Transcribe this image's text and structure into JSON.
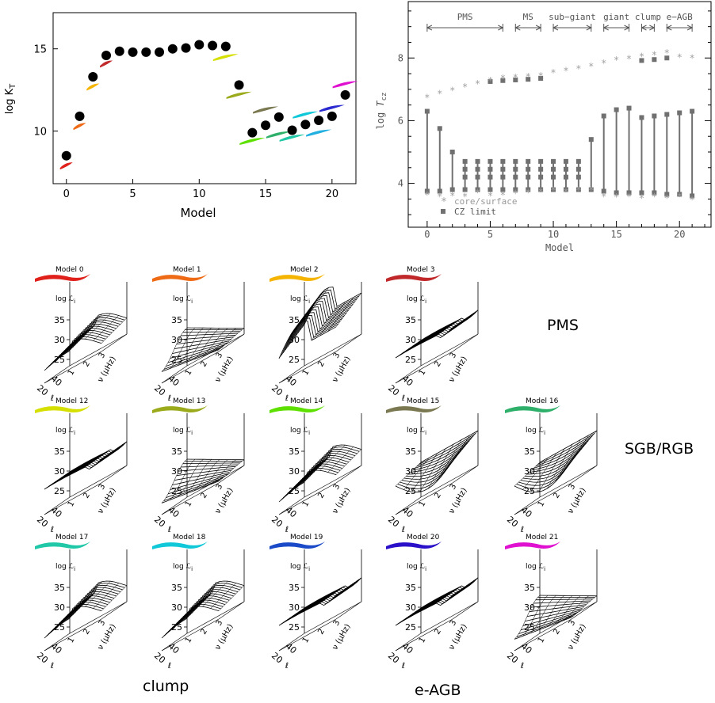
{
  "chart_data": [
    {
      "type": "scatter",
      "title": "",
      "xlabel": "Model",
      "ylabel": "log K_T",
      "xlim": [
        -1,
        21.8
      ],
      "ylim": [
        6.8,
        17.2
      ],
      "xticks": [
        0,
        5,
        10,
        15,
        20
      ],
      "yticks": [
        10,
        15
      ],
      "x": [
        0,
        1,
        2,
        3,
        4,
        5,
        6,
        7,
        8,
        9,
        10,
        11,
        12,
        13,
        14,
        15,
        16,
        17,
        18,
        19,
        20,
        21
      ],
      "y": [
        8.5,
        10.9,
        13.3,
        14.6,
        14.85,
        14.8,
        14.8,
        14.8,
        15.0,
        15.05,
        15.25,
        15.2,
        15.15,
        12.8,
        9.9,
        10.35,
        10.85,
        10.05,
        10.4,
        10.65,
        10.9,
        12.2
      ],
      "swatches": [
        {
          "model": 0,
          "y": 7.9,
          "color": "#e0201a"
        },
        {
          "model": 1,
          "y": 10.3,
          "color": "#ef6a14"
        },
        {
          "model": 2,
          "y": 12.7,
          "color": "#f5b400"
        },
        {
          "model": 3,
          "y": 14.1,
          "color": "#c0282a"
        },
        {
          "model": 12,
          "y": 14.5,
          "color": "#d6e000"
        },
        {
          "model": 13,
          "y": 12.2,
          "color": "#9aaa1a"
        },
        {
          "model": 14,
          "y": 9.4,
          "color": "#5de000"
        },
        {
          "model": 15,
          "y": 11.3,
          "color": "#7a7850"
        },
        {
          "model": 16,
          "y": 9.8,
          "color": "#2fb06a"
        },
        {
          "model": 17,
          "y": 9.6,
          "color": "#20c8a8"
        },
        {
          "model": 18,
          "y": 11.0,
          "color": "#10c8d8"
        },
        {
          "model": 19,
          "y": 9.9,
          "color": "#22b0e0"
        },
        {
          "model": 20,
          "y": 11.4,
          "color": "#2a2ad0"
        },
        {
          "model": 21,
          "y": 12.85,
          "color": "#e010d0"
        }
      ]
    },
    {
      "type": "scatter",
      "title": "",
      "xlabel": "Model",
      "ylabel": "log T_cz",
      "xlim": [
        -1.5,
        22.5
      ],
      "ylim": [
        2.6,
        9.8
      ],
      "xticks": [
        0,
        5,
        10,
        15,
        20
      ],
      "yticks": [
        4,
        6,
        8
      ],
      "phases": [
        {
          "label": "PMS",
          "from": 0,
          "to": 6
        },
        {
          "label": "MS",
          "from": 7,
          "to": 9
        },
        {
          "label": "sub−giant",
          "from": 10,
          "to": 13
        },
        {
          "label": "giant",
          "from": 14,
          "to": 16
        },
        {
          "label": "clump",
          "from": 17,
          "to": 18
        },
        {
          "label": "e−AGB",
          "from": 19,
          "to": 21
        }
      ],
      "series": [
        {
          "name": "core/surface",
          "color": "#a0a0a0",
          "x": [
            0,
            1,
            2,
            3,
            4,
            5,
            6,
            7,
            8,
            9,
            10,
            11,
            12,
            13,
            14,
            15,
            16,
            17,
            18,
            19,
            20,
            21
          ],
          "y": [
            6.75,
            6.88,
            6.98,
            7.1,
            7.2,
            7.3,
            7.38,
            7.4,
            7.42,
            7.45,
            7.55,
            7.62,
            7.68,
            7.75,
            7.85,
            7.95,
            8.0,
            8.07,
            8.12,
            8.18,
            8.05,
            8.02
          ],
          "y_low": [
            3.65,
            3.6,
            3.62,
            3.6,
            3.72,
            3.62,
            3.65,
            3.7,
            3.72,
            3.75,
            3.8,
            3.75,
            3.8,
            3.8,
            3.6,
            3.58,
            3.6,
            3.55,
            3.6,
            3.55,
            3.6,
            3.5
          ]
        },
        {
          "name": "CZ limit",
          "color": "#707070",
          "x": [
            0,
            1,
            2,
            3,
            4,
            5,
            6,
            7,
            8,
            9,
            10,
            11,
            12,
            13,
            14,
            15,
            16,
            17,
            18,
            19,
            20,
            21
          ],
          "y_top": [
            6.3,
            5.75,
            5.0,
            4.7,
            4.7,
            4.7,
            4.7,
            4.7,
            4.7,
            4.7,
            4.7,
            4.7,
            4.7,
            5.4,
            6.15,
            6.35,
            6.4,
            6.1,
            6.15,
            6.2,
            6.25,
            6.3
          ],
          "y_bottom": [
            3.75,
            3.75,
            3.8,
            3.8,
            3.8,
            3.8,
            3.8,
            3.8,
            3.8,
            3.8,
            3.8,
            3.8,
            3.8,
            3.8,
            3.75,
            3.7,
            3.7,
            3.7,
            3.7,
            3.65,
            3.65,
            3.6
          ],
          "y_hi_marker": [
            null,
            null,
            null,
            null,
            null,
            7.25,
            7.28,
            7.3,
            7.32,
            7.35,
            null,
            null,
            null,
            null,
            null,
            null,
            null,
            7.92,
            7.95,
            8.0,
            null,
            null
          ]
        }
      ],
      "legend": {
        "placement": "bottom-left",
        "entries": [
          "core/surface",
          "CZ limit"
        ]
      }
    }
  ],
  "panels": [
    {
      "title": "Model 0",
      "color": "#e0201a",
      "shape": "dip"
    },
    {
      "title": "Model 1",
      "color": "#ef6a14",
      "shape": "dome"
    },
    {
      "title": "Model 2",
      "color": "#f5b400",
      "shape": "spiky"
    },
    {
      "title": "Model 3",
      "color": "#c0282a",
      "shape": "flat"
    },
    {
      "title": "Model 12",
      "color": "#d6e000",
      "shape": "flat"
    },
    {
      "title": "Model 13",
      "color": "#9aaa1a",
      "shape": "dome"
    },
    {
      "title": "Model 14",
      "color": "#5de000",
      "shape": "dip"
    },
    {
      "title": "Model 15",
      "color": "#7a7850",
      "shape": "valley"
    },
    {
      "title": "Model 16",
      "color": "#2fb06a",
      "shape": "valley"
    },
    {
      "title": "Model 17",
      "color": "#20c8a8",
      "shape": "dip"
    },
    {
      "title": "Model 18",
      "color": "#10c8d8",
      "shape": "dip"
    },
    {
      "title": "Model 19",
      "color": "#1a4ac8",
      "shape": "flat"
    },
    {
      "title": "Model 20",
      "color": "#2a10c8",
      "shape": "flat"
    },
    {
      "title": "Model 21",
      "color": "#e010d0",
      "shape": "dome"
    }
  ],
  "panel_axes": {
    "zlabel": "log ℒ",
    "zlabel_sub": "i",
    "zticks": [
      "35",
      "30",
      "25"
    ],
    "l_label": "ℓ",
    "l_ticks": [
      "40",
      "20"
    ],
    "nu_label": "ν (μHz)",
    "nu_ticks": [
      "1",
      "2",
      "3"
    ]
  },
  "phase_labels": {
    "pms": "PMS",
    "sgb": "SGB/RGB",
    "clump": "clump",
    "eagb": "e-AGB"
  }
}
